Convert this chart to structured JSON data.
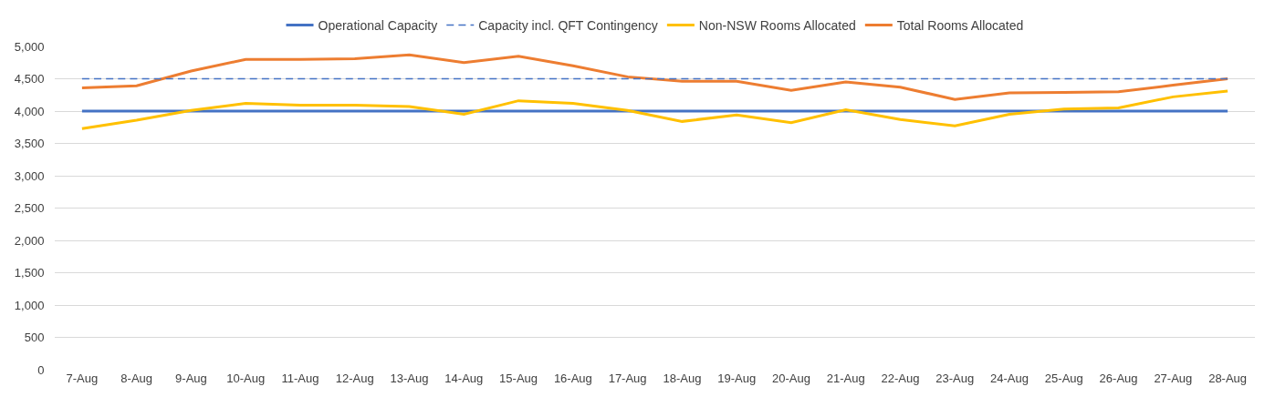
{
  "chart_data": {
    "type": "line",
    "categories": [
      "7-Aug",
      "8-Aug",
      "9-Aug",
      "10-Aug",
      "11-Aug",
      "12-Aug",
      "13-Aug",
      "14-Aug",
      "15-Aug",
      "16-Aug",
      "17-Aug",
      "18-Aug",
      "19-Aug",
      "20-Aug",
      "21-Aug",
      "22-Aug",
      "23-Aug",
      "24-Aug",
      "25-Aug",
      "26-Aug",
      "27-Aug",
      "28-Aug"
    ],
    "series": [
      {
        "name": "Operational Capacity",
        "color": "#4472c4",
        "line_style": "solid",
        "values": [
          4000,
          4000,
          4000,
          4000,
          4000,
          4000,
          4000,
          4000,
          4000,
          4000,
          4000,
          4000,
          4000,
          4000,
          4000,
          4000,
          4000,
          4000,
          4000,
          4000,
          4000,
          4000
        ]
      },
      {
        "name": "Capacity incl. QFT Contingency",
        "color": "#4472c4",
        "line_style": "dashed",
        "values": [
          4500,
          4500,
          4500,
          4500,
          4500,
          4500,
          4500,
          4500,
          4500,
          4500,
          4500,
          4500,
          4500,
          4500,
          4500,
          4500,
          4500,
          4500,
          4500,
          4500,
          4500,
          4500
        ]
      },
      {
        "name": "Non-NSW Rooms Allocated",
        "color": "#ffc000",
        "line_style": "solid",
        "values": [
          3730,
          3860,
          4010,
          4120,
          4090,
          4090,
          4070,
          3950,
          4160,
          4120,
          4010,
          3840,
          3940,
          3820,
          4020,
          3870,
          3770,
          3950,
          4030,
          4050,
          4220,
          4310
        ]
      },
      {
        "name": "Total Rooms Allocated",
        "color": "#ed7d31",
        "line_style": "solid",
        "values": [
          4360,
          4390,
          4620,
          4800,
          4800,
          4810,
          4870,
          4750,
          4850,
          4700,
          4530,
          4460,
          4460,
          4320,
          4450,
          4370,
          4180,
          4280,
          4290,
          4300,
          4400,
          4500
        ]
      }
    ],
    "ylim": [
      0,
      5000
    ],
    "yticks": [
      {
        "value": 0,
        "label": "0"
      },
      {
        "value": 500,
        "label": "500"
      },
      {
        "value": 1000,
        "label": "1,000"
      },
      {
        "value": 1500,
        "label": "1,500"
      },
      {
        "value": 2000,
        "label": "2,000"
      },
      {
        "value": 2500,
        "label": "2,500"
      },
      {
        "value": 3000,
        "label": "3,000"
      },
      {
        "value": 3500,
        "label": "3,500"
      },
      {
        "value": 4000,
        "label": "4,000"
      },
      {
        "value": 4500,
        "label": "4,500"
      },
      {
        "value": 5000,
        "label": "5,000"
      }
    ],
    "grid": "y",
    "legend": "top",
    "marker": "none"
  }
}
